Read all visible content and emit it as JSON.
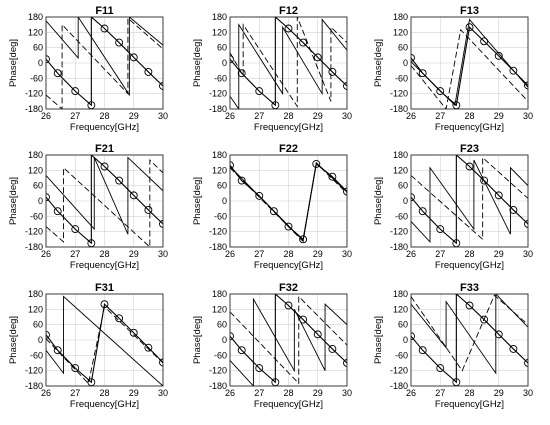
{
  "chart_data": [
    {
      "type": "line",
      "title": "F11",
      "xlabel": "Frequency[GHz]",
      "ylabel": "Phase[deg]",
      "xlim": [
        26,
        30
      ],
      "ylim": [
        -180,
        180
      ],
      "xticks": [
        "26",
        "27",
        "28",
        "29",
        "30"
      ],
      "yticks": [
        "-180",
        "-120",
        "-60",
        "0",
        "60",
        "120",
        "180"
      ],
      "grid": true,
      "series": [
        {
          "style": "solid-circle",
          "x": [
            26.0,
            26.4,
            27.0,
            27.55,
            27.55,
            28.0,
            28.5,
            29.0,
            29.5,
            30.0
          ],
          "y": [
            15,
            -40,
            -110,
            -165,
            180,
            135,
            80,
            22,
            -35,
            -90
          ]
        },
        {
          "style": "solid",
          "x": [
            26.0,
            27.1,
            27.1,
            28.85,
            28.85,
            30.0
          ],
          "y": [
            165,
            20,
            180,
            -125,
            180,
            70
          ]
        },
        {
          "style": "dashed",
          "x": [
            26.0,
            26.55,
            26.55,
            28.8,
            28.8,
            30.0
          ],
          "y": [
            -125,
            -180,
            150,
            -120,
            175,
            55
          ]
        }
      ]
    },
    {
      "type": "line",
      "title": "F12",
      "xlabel": "Frequency[GHz]",
      "ylabel": "Phase[deg]",
      "xlim": [
        26,
        30
      ],
      "ylim": [
        -180,
        180
      ],
      "xticks": [
        "26",
        "27",
        "28",
        "29",
        "30"
      ],
      "yticks": [
        "-180",
        "-120",
        "-60",
        "0",
        "60",
        "120",
        "180"
      ],
      "grid": true,
      "series": [
        {
          "style": "solid-circle",
          "x": [
            26.0,
            26.4,
            27.0,
            27.55,
            27.55,
            28.0,
            28.5,
            29.0,
            29.5,
            30.0
          ],
          "y": [
            15,
            -40,
            -110,
            -165,
            180,
            135,
            80,
            22,
            -35,
            -90
          ]
        },
        {
          "style": "solid",
          "x": [
            26.0,
            26.3,
            26.3,
            27.8,
            27.8,
            29.15,
            29.15,
            30.0
          ],
          "y": [
            -130,
            -180,
            150,
            -120,
            140,
            -120,
            170,
            50
          ]
        },
        {
          "style": "dashed",
          "x": [
            26.0,
            26.45,
            26.45,
            28.3,
            28.3,
            29.45,
            29.45,
            30.0
          ],
          "y": [
            40,
            -50,
            150,
            -170,
            180,
            -150,
            140,
            80
          ]
        }
      ]
    },
    {
      "type": "line",
      "title": "F13",
      "xlabel": "Frequency[GHz]",
      "ylabel": "Phase[deg]",
      "xlim": [
        26,
        30
      ],
      "ylim": [
        -180,
        180
      ],
      "xticks": [
        "26",
        "27",
        "28",
        "29",
        "30"
      ],
      "yticks": [
        "-180",
        "-120",
        "-60",
        "0",
        "60",
        "120",
        "180"
      ],
      "grid": true,
      "series": [
        {
          "style": "solid-circle",
          "x": [
            26.0,
            26.4,
            27.0,
            27.55,
            28.0,
            28.5,
            29.0,
            29.5,
            30.0
          ],
          "y": [
            20,
            -40,
            -110,
            -165,
            140,
            85,
            28,
            -30,
            -88
          ]
        },
        {
          "style": "solid",
          "x": [
            26.0,
            27.5,
            28.0,
            30.0
          ],
          "y": [
            5,
            -165,
            170,
            -95
          ]
        },
        {
          "style": "dashed",
          "x": [
            26.0,
            27.2,
            27.7,
            30.0
          ],
          "y": [
            -10,
            -180,
            130,
            -150
          ]
        }
      ]
    },
    {
      "type": "line",
      "title": "F21",
      "xlabel": "Frequency[GHz]",
      "ylabel": "Phase[deg]",
      "xlim": [
        26,
        30
      ],
      "ylim": [
        -180,
        180
      ],
      "xticks": [
        "26",
        "27",
        "28",
        "29",
        "30"
      ],
      "yticks": [
        "-180",
        "-120",
        "-60",
        "0",
        "60",
        "120",
        "180"
      ],
      "grid": true,
      "series": [
        {
          "style": "solid-circle",
          "x": [
            26.0,
            26.4,
            27.0,
            27.55,
            27.55,
            28.0,
            28.5,
            29.0,
            29.5,
            30.0
          ],
          "y": [
            15,
            -40,
            -110,
            -165,
            180,
            135,
            80,
            22,
            -35,
            -90
          ]
        },
        {
          "style": "solid",
          "x": [
            26.0,
            27.65,
            27.65,
            28.8,
            28.8,
            30.0
          ],
          "y": [
            100,
            -110,
            170,
            -130,
            170,
            40
          ]
        },
        {
          "style": "dashed",
          "x": [
            26.0,
            26.6,
            26.6,
            29.55,
            29.55,
            30.0
          ],
          "y": [
            -100,
            -160,
            130,
            -180,
            160,
            110
          ]
        }
      ]
    },
    {
      "type": "line",
      "title": "F22",
      "xlabel": "Frequency[GHz]",
      "ylabel": "Phase[deg]",
      "xlim": [
        26,
        30
      ],
      "ylim": [
        -180,
        180
      ],
      "xticks": [
        "26",
        "27",
        "28",
        "29",
        "30"
      ],
      "yticks": [
        "-180",
        "-120",
        "-60",
        "0",
        "60",
        "120",
        "180"
      ],
      "grid": true,
      "series": [
        {
          "style": "solid-circle",
          "x": [
            26.0,
            26.4,
            27.0,
            27.5,
            28.0,
            28.5,
            28.95,
            29.5,
            30.0
          ],
          "y": [
            140,
            80,
            20,
            -40,
            -100,
            -150,
            145,
            95,
            37
          ]
        },
        {
          "style": "solid",
          "x": [
            26.0,
            28.5,
            28.95,
            30.0
          ],
          "y": [
            135,
            -155,
            150,
            35
          ]
        },
        {
          "style": "dashed",
          "x": [
            26.0,
            28.5,
            28.95,
            30.0
          ],
          "y": [
            130,
            -158,
            148,
            30
          ]
        }
      ]
    },
    {
      "type": "line",
      "title": "F23",
      "xlabel": "Frequency[GHz]",
      "ylabel": "Phase[deg]",
      "xlim": [
        26,
        30
      ],
      "ylim": [
        -180,
        180
      ],
      "xticks": [
        "26",
        "27",
        "28",
        "29",
        "30"
      ],
      "yticks": [
        "-180",
        "-120",
        "-60",
        "0",
        "60",
        "120",
        "180"
      ],
      "grid": true,
      "series": [
        {
          "style": "solid-circle",
          "x": [
            26.0,
            26.4,
            27.0,
            27.55,
            27.55,
            28.0,
            28.5,
            29.0,
            29.5,
            30.0
          ],
          "y": [
            15,
            -40,
            -110,
            -165,
            180,
            135,
            80,
            22,
            -35,
            -90
          ]
        },
        {
          "style": "solid",
          "x": [
            26.0,
            26.65,
            26.65,
            28.15,
            28.15,
            29.4,
            29.4,
            30.0
          ],
          "y": [
            -80,
            -160,
            130,
            -110,
            160,
            -130,
            130,
            60
          ]
        },
        {
          "style": "dashed",
          "x": [
            26.0,
            28.45,
            28.45,
            30.0
          ],
          "y": [
            100,
            -150,
            170,
            10
          ]
        }
      ]
    },
    {
      "type": "line",
      "title": "F31",
      "xlabel": "Frequency[GHz]",
      "ylabel": "Phase[deg]",
      "xlim": [
        26,
        30
      ],
      "ylim": [
        -180,
        180
      ],
      "xticks": [
        "26",
        "27",
        "28",
        "29",
        "30"
      ],
      "yticks": [
        "-180",
        "-120",
        "-60",
        "0",
        "60",
        "120",
        "180"
      ],
      "grid": true,
      "series": [
        {
          "style": "solid-circle",
          "x": [
            26.0,
            26.4,
            27.0,
            27.55,
            28.0,
            28.5,
            29.0,
            29.5,
            30.0
          ],
          "y": [
            20,
            -40,
            -110,
            -165,
            140,
            85,
            28,
            -30,
            -88
          ]
        },
        {
          "style": "solid",
          "x": [
            26.0,
            26.6,
            26.6,
            30.0
          ],
          "y": [
            -40,
            -130,
            170,
            -180
          ]
        },
        {
          "style": "dashed",
          "x": [
            26.0,
            27.45,
            28.0,
            30.0
          ],
          "y": [
            5,
            -170,
            130,
            -90
          ]
        }
      ]
    },
    {
      "type": "line",
      "title": "F32",
      "xlabel": "Frequency[GHz]",
      "ylabel": "Phase[deg]",
      "xlim": [
        26,
        30
      ],
      "ylim": [
        -180,
        180
      ],
      "xticks": [
        "26",
        "27",
        "28",
        "29",
        "30"
      ],
      "yticks": [
        "-180",
        "-120",
        "-60",
        "0",
        "60",
        "120",
        "180"
      ],
      "grid": true,
      "series": [
        {
          "style": "solid-circle",
          "x": [
            26.0,
            26.4,
            27.0,
            27.55,
            27.55,
            28.0,
            28.5,
            29.0,
            29.5,
            30.0
          ],
          "y": [
            15,
            -40,
            -110,
            -165,
            180,
            135,
            80,
            22,
            -35,
            -90
          ]
        },
        {
          "style": "solid",
          "x": [
            26.0,
            26.8,
            26.8,
            28.2,
            28.2,
            29.25,
            29.25,
            30.0
          ],
          "y": [
            -80,
            -180,
            160,
            -120,
            120,
            -120,
            140,
            60
          ]
        },
        {
          "style": "dashed",
          "x": [
            26.0,
            28.35,
            28.35,
            30.0
          ],
          "y": [
            110,
            -170,
            170,
            -20
          ]
        }
      ]
    },
    {
      "type": "line",
      "title": "F33",
      "xlabel": "Frequency[GHz]",
      "ylabel": "Phase[deg]",
      "xlim": [
        26,
        30
      ],
      "ylim": [
        -180,
        180
      ],
      "xticks": [
        "26",
        "27",
        "28",
        "29",
        "30"
      ],
      "yticks": [
        "-180",
        "-120",
        "-60",
        "0",
        "60",
        "120",
        "180"
      ],
      "grid": true,
      "series": [
        {
          "style": "solid-circle",
          "x": [
            26.0,
            26.4,
            27.0,
            27.55,
            27.55,
            28.0,
            28.5,
            29.0,
            29.5,
            30.0
          ],
          "y": [
            15,
            -40,
            -110,
            -165,
            180,
            135,
            80,
            22,
            -35,
            -90
          ]
        },
        {
          "style": "solid",
          "x": [
            26.0,
            27.2,
            27.2,
            28.9,
            28.9,
            30.0
          ],
          "y": [
            140,
            -30,
            150,
            -130,
            180,
            50
          ]
        },
        {
          "style": "dashed",
          "x": [
            26.0,
            27.75,
            28.85,
            30.0
          ],
          "y": [
            170,
            -120,
            175,
            60
          ]
        }
      ]
    }
  ]
}
